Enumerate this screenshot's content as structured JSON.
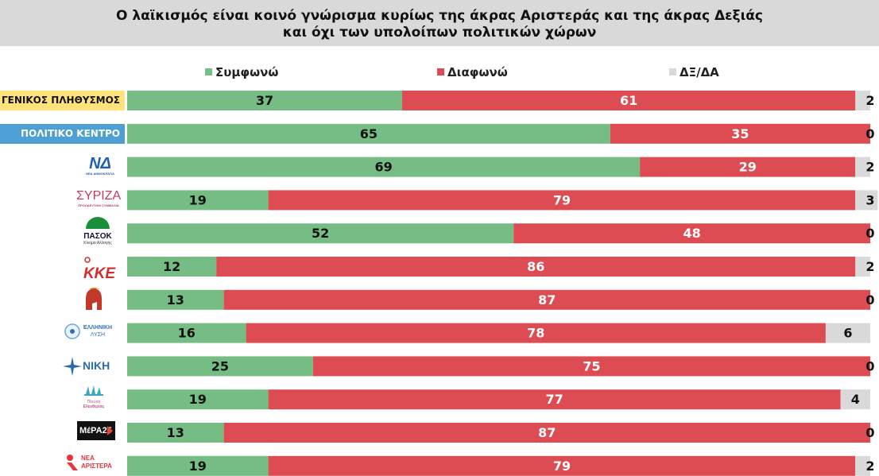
{
  "title": {
    "line1": "Ο λαϊκισμός είναι κοινό γνώρισμα κυρίως της άκρας Αριστεράς και της άκρας Δεξιάς",
    "line2": "και όχι των υπολοίπων πολιτικών χώρων"
  },
  "colors": {
    "agree": "#76bd85",
    "disagree": "#dd4c52",
    "dk": "#d9d9d9",
    "general_label_bg": "#ffe27a",
    "center_label_bg": "#4d9fd4"
  },
  "chart_data": {
    "type": "bar",
    "orientation": "horizontal",
    "stacked": true,
    "title": "Ο λαϊκισμός είναι κοινό γνώρισμα κυρίως της άκρας Αριστεράς και της άκρας Δεξιάς και όχι των υπολοίπων πολιτικών χώρων",
    "legend_position": "top",
    "xlim": [
      0,
      100
    ],
    "categories": [
      "ΓΕΝΙΚΟΣ ΠΛΗΘΥΣΜΟΣ",
      "ΠΟΛΙΤΙΚΟ ΚΕΝΤΡΟ",
      "ΝΔ",
      "ΣΥΡΙΖΑ",
      "ΠΑΣΟΚ",
      "ΚΚΕ",
      "",
      "ΕΛΛΗΝΙΚΗ ΛΥΣΗ",
      "ΝΙΚΗ",
      "Πλεύση Ελευθερίας",
      "ΜέΡΑ25",
      "ΝΕΑ ΑΡΙΣΤΕΡΑ"
    ],
    "series": [
      {
        "name": "Συμφωνώ",
        "values": [
          37,
          65,
          69,
          19,
          52,
          12,
          13,
          16,
          25,
          19,
          13,
          19
        ]
      },
      {
        "name": "Διαφωνώ",
        "values": [
          61,
          35,
          29,
          79,
          48,
          86,
          87,
          78,
          75,
          77,
          87,
          79
        ]
      },
      {
        "name": "ΔΞ/ΔΑ",
        "values": [
          2,
          0,
          2,
          3,
          0,
          2,
          0,
          6,
          0,
          4,
          0,
          2
        ]
      }
    ]
  },
  "labels": {
    "general": "ΓΕΝΙΚΟΣ ΠΛΗΘΥΣΜΟΣ",
    "center": "ΠΟΛΙΤΙΚΟ ΚΕΝΤΡΟ"
  },
  "logos": {
    "nd": "ΝΔ",
    "nd_sub": "ΝΕΑ ΔΗΜΟΚΡΑΤΙΑ",
    "syriza": "ΣΥΡΙΖΑ",
    "syriza_sub": "ΠΡΟΟΔΕΥΤΙΚΗ ΣΥΜΜΑΧΙΑ",
    "pasok": "ΠΑΣΟΚ",
    "pasok_sub": "Κίνημα Αλλαγής",
    "kke": "ΚΚΕ",
    "el_lysi_1": "ΕΛΛΗΝΙΚΗ",
    "el_lysi_2": "ΛΥΣΗ",
    "niki": "ΝΙΚΗ",
    "plefsi_1": "Πλεύση",
    "plefsi_2": "Ελευθερίας",
    "mera": "ΜέΡΑ25",
    "nea_ar_1": "ΝΕΑ",
    "nea_ar_2": "ΑΡΙΣΤΕΡΑ"
  }
}
